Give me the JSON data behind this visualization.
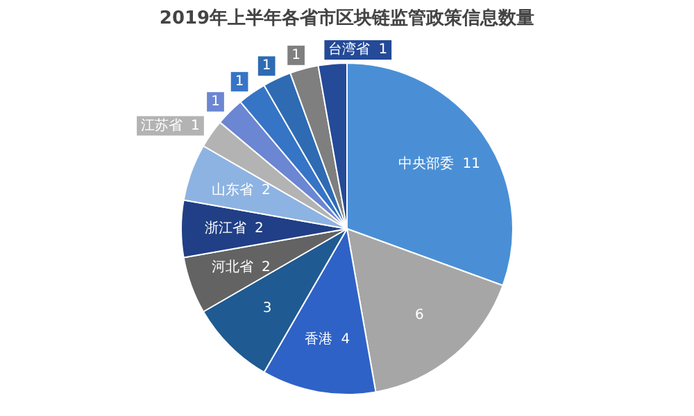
{
  "chart_data": {
    "type": "pie",
    "title": "2019年上半年各省市区块链监管政策信息数量",
    "categories": [
      "中央部委",
      null,
      "香港",
      null,
      "河北省",
      "浙江省",
      "山东省",
      "江苏省",
      null,
      null,
      null,
      null,
      "台湾省"
    ],
    "values": [
      11,
      6,
      4,
      3,
      2,
      2,
      2,
      1,
      1,
      1,
      1,
      1,
      1
    ],
    "colors": [
      "#4a8fd6",
      "#a6a6a6",
      "#2f62c6",
      "#1f5a92",
      "#636363",
      "#213f86",
      "#8db3e2",
      "#b3b3b3",
      "#6b86d2",
      "#3674c6",
      "#2e6bb3",
      "#7f7f7f",
      "#244a98"
    ],
    "data_labels": true,
    "legend": false
  }
}
